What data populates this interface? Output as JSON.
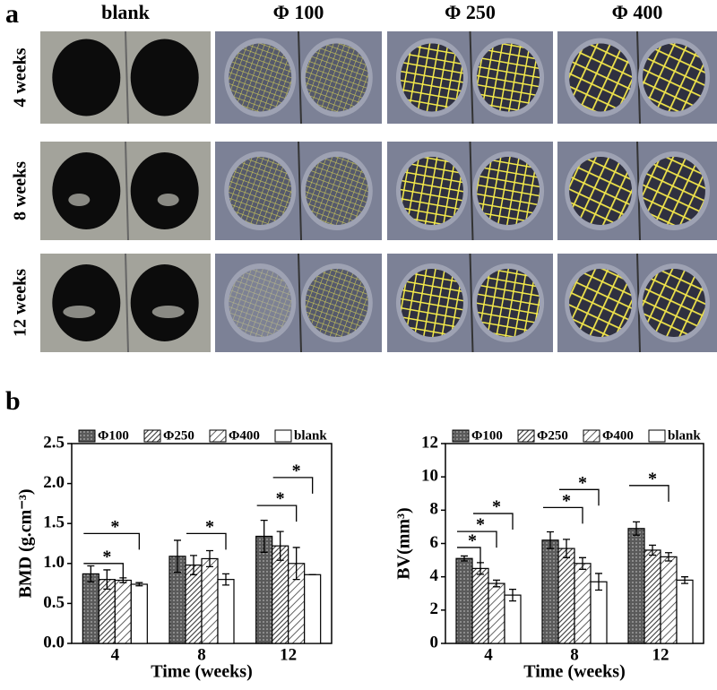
{
  "panel_a": {
    "label": "a",
    "columns": [
      "blank",
      "Φ 100",
      "Φ 250",
      "Φ 400"
    ],
    "rows": [
      "4 weeks",
      "8 weeks",
      "12 weeks"
    ]
  },
  "panel_b": {
    "label": "b"
  },
  "chart_data": [
    {
      "type": "bar",
      "ylabel": "BMD (g.cm⁻³)",
      "xlabel": "Time (weeks)",
      "categories": [
        "4",
        "8",
        "12"
      ],
      "series": [
        {
          "name": "Φ100",
          "color": "#5a5a5a",
          "values": [
            0.87,
            1.09,
            1.34
          ],
          "errors": [
            0.1,
            0.2,
            0.2
          ]
        },
        {
          "name": "Φ250",
          "color": "#3a3a3a",
          "values": [
            0.8,
            0.98,
            1.22
          ],
          "errors": [
            0.12,
            0.12,
            0.18
          ]
        },
        {
          "name": "Φ400",
          "color": "#3a3a3a",
          "values": [
            0.79,
            1.06,
            1.0
          ],
          "errors": [
            0.03,
            0.1,
            0.2
          ]
        },
        {
          "name": "blank",
          "color": "#ffffff",
          "values": [
            0.74,
            0.8,
            0.86
          ],
          "errors": [
            0.02,
            0.07,
            0.0
          ]
        }
      ],
      "ylim": [
        0,
        2.5
      ],
      "yticks": [
        {
          "value": 0,
          "label": "0.0"
        },
        0.5,
        {
          "value": 1,
          "label": "1.0"
        },
        1.5,
        {
          "value": 2,
          "label": "2.0"
        },
        2.5
      ],
      "annotations": [
        "*",
        "*",
        "*",
        "*",
        "*"
      ]
    },
    {
      "type": "bar",
      "ylabel": "BV(mm³)",
      "xlabel": "Time (weeks)",
      "categories": [
        "4",
        "8",
        "12"
      ],
      "series": [
        {
          "name": "Φ100",
          "color": "#5a5a5a",
          "values": [
            5.1,
            6.2,
            6.9
          ],
          "errors": [
            0.15,
            0.5,
            0.4
          ]
        },
        {
          "name": "Φ250",
          "color": "#3a3a3a",
          "values": [
            4.5,
            5.7,
            5.6
          ],
          "errors": [
            0.35,
            0.55,
            0.3
          ]
        },
        {
          "name": "Φ400",
          "color": "#3a3a3a",
          "values": [
            3.6,
            4.8,
            5.2
          ],
          "errors": [
            0.2,
            0.35,
            0.25
          ]
        },
        {
          "name": "blank",
          "color": "#ffffff",
          "values": [
            2.9,
            3.7,
            3.8
          ],
          "errors": [
            0.35,
            0.5,
            0.2
          ]
        }
      ],
      "ylim": [
        0,
        12
      ],
      "yticks": [
        0,
        2,
        4,
        6,
        8,
        10,
        12
      ],
      "annotations": [
        "*",
        "*",
        "*",
        "*",
        "*",
        "*"
      ]
    }
  ]
}
